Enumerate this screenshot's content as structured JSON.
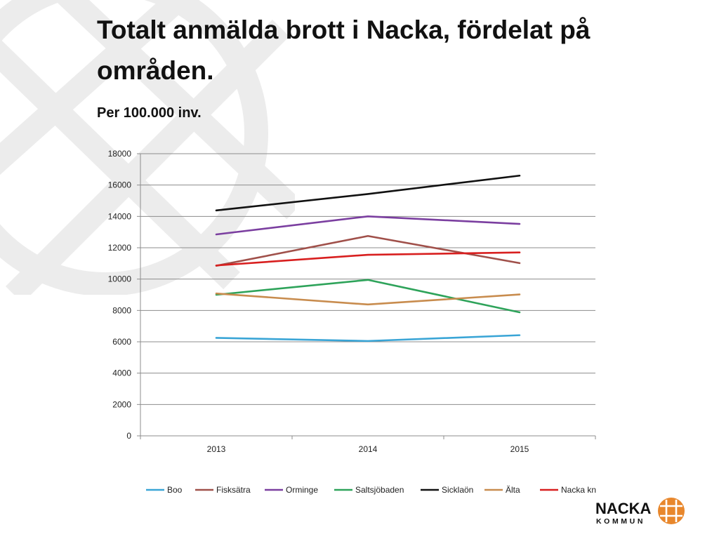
{
  "page": {
    "title": "Totalt anmälda brott i Nacka, fördelat på områden.",
    "subtitle": "Per 100.000 inv."
  },
  "logo": {
    "word1": "NACKA",
    "word2": "KOMMUN",
    "color": "#e8872c"
  },
  "chart_data": {
    "type": "line",
    "title": "Totalt anmälda brott i Nacka, fördelat på områden.",
    "subtitle": "Per 100.000 inv.",
    "x": [
      "2013",
      "2014",
      "2015"
    ],
    "ylim": [
      0,
      18000
    ],
    "yticks": [
      "0",
      "2000",
      "4000",
      "6000",
      "8000",
      "10000",
      "12000",
      "14000",
      "16000",
      "18000"
    ],
    "grid": true,
    "legend": "bottom",
    "series": [
      {
        "name": "Boo",
        "color": "#3aa5d6",
        "values": [
          6250,
          6050,
          6420
        ]
      },
      {
        "name": "Fisksätra",
        "color": "#a0504a",
        "values": [
          10850,
          12750,
          11020
        ]
      },
      {
        "name": "Orminge",
        "color": "#7b3fa0",
        "values": [
          12850,
          14000,
          13520
        ]
      },
      {
        "name": "Saltsjöbaden",
        "color": "#2ea35a",
        "values": [
          9000,
          9950,
          7880
        ]
      },
      {
        "name": "Sicklaön",
        "color": "#111111",
        "values": [
          14380,
          15430,
          16600
        ]
      },
      {
        "name": "Älta",
        "color": "#c88c4e",
        "values": [
          9080,
          8380,
          9020
        ]
      },
      {
        "name": "Nacka kn",
        "color": "#d81f1f",
        "values": [
          10870,
          11550,
          11700
        ]
      }
    ]
  }
}
